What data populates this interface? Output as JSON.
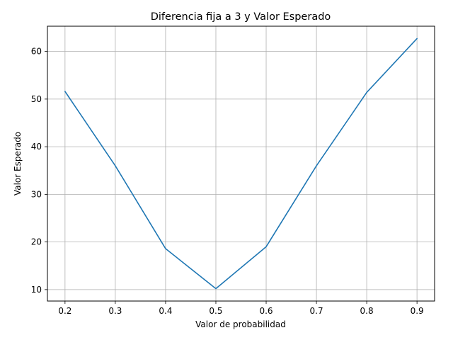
{
  "chart_data": {
    "type": "line",
    "title": "Diferencia fija a 3 y Valor Esperado",
    "xlabel": "Valor de probabilidad",
    "ylabel": "Valor Esperado",
    "x": [
      0.2,
      0.3,
      0.4,
      0.5,
      0.6,
      0.7,
      0.8,
      0.9
    ],
    "series": [
      {
        "values": [
          51.6,
          36.0,
          18.6,
          10.2,
          19.0,
          36.0,
          51.4,
          62.7
        ],
        "color": "#1f77b4"
      }
    ],
    "xticks": [
      "0.2",
      "0.3",
      "0.4",
      "0.5",
      "0.6",
      "0.7",
      "0.8",
      "0.9"
    ],
    "yticks": [
      "10",
      "20",
      "30",
      "40",
      "50",
      "60"
    ],
    "xlim": [
      0.165,
      0.935
    ],
    "ylim": [
      7.6,
      65.3
    ],
    "grid": true,
    "legend": "none"
  }
}
